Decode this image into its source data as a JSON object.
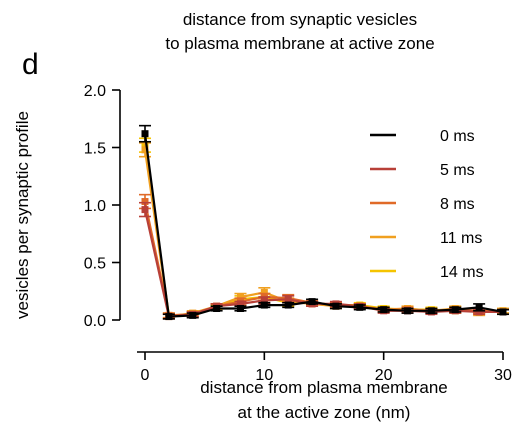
{
  "panel_letter": "d",
  "chart_data": {
    "type": "line",
    "title": [
      "distance from synaptic vesicles",
      "to plasma membrane at active zone"
    ],
    "xlabel": [
      "distance from plasma membrane",
      "at the active zone (nm)"
    ],
    "ylabel": "vesicles per synaptic profile",
    "xlim": [
      0,
      30
    ],
    "ylim": [
      0,
      2.0
    ],
    "x_ticks": [
      "0",
      "10",
      "20",
      "30"
    ],
    "y_ticks": [
      "0.0",
      "0.5",
      "1.0",
      "1.5",
      "2.0"
    ],
    "legend_position": "right",
    "x": [
      0,
      2,
      4,
      6,
      8,
      10,
      12,
      14,
      16,
      18,
      20,
      22,
      24,
      26,
      28,
      30
    ],
    "series": [
      {
        "name": "14 ms",
        "color": "#F5C400",
        "values": [
          1.52,
          0.04,
          0.05,
          0.11,
          0.18,
          0.2,
          0.15,
          0.15,
          0.13,
          0.13,
          0.1,
          0.09,
          0.09,
          0.08,
          0.08,
          0.08
        ],
        "errors": [
          0.06,
          0.02,
          0.02,
          0.02,
          0.03,
          0.03,
          0.03,
          0.02,
          0.02,
          0.02,
          0.02,
          0.02,
          0.02,
          0.02,
          0.02,
          0.02
        ]
      },
      {
        "name": "11 ms",
        "color": "#F0A020",
        "values": [
          1.48,
          0.03,
          0.06,
          0.12,
          0.2,
          0.24,
          0.16,
          0.14,
          0.12,
          0.12,
          0.09,
          0.1,
          0.08,
          0.1,
          0.07,
          0.08
        ],
        "errors": [
          0.06,
          0.02,
          0.02,
          0.02,
          0.03,
          0.04,
          0.03,
          0.02,
          0.02,
          0.02,
          0.02,
          0.02,
          0.02,
          0.02,
          0.03,
          0.02
        ]
      },
      {
        "name": "8 ms",
        "color": "#E06A28",
        "values": [
          1.03,
          0.04,
          0.05,
          0.12,
          0.16,
          0.2,
          0.19,
          0.15,
          0.13,
          0.12,
          0.09,
          0.09,
          0.08,
          0.09,
          0.08,
          0.07
        ],
        "errors": [
          0.06,
          0.02,
          0.02,
          0.02,
          0.03,
          0.03,
          0.03,
          0.02,
          0.02,
          0.02,
          0.02,
          0.02,
          0.02,
          0.02,
          0.02,
          0.02
        ]
      },
      {
        "name": "5 ms",
        "color": "#B84038",
        "values": [
          0.96,
          0.03,
          0.05,
          0.12,
          0.14,
          0.17,
          0.18,
          0.14,
          0.14,
          0.12,
          0.08,
          0.08,
          0.07,
          0.08,
          0.07,
          0.07
        ],
        "errors": [
          0.06,
          0.02,
          0.02,
          0.02,
          0.02,
          0.03,
          0.03,
          0.02,
          0.02,
          0.02,
          0.02,
          0.02,
          0.02,
          0.02,
          0.02,
          0.02
        ]
      },
      {
        "name": "0 ms",
        "color": "#000000",
        "values": [
          1.62,
          0.03,
          0.04,
          0.1,
          0.1,
          0.13,
          0.13,
          0.16,
          0.12,
          0.11,
          0.09,
          0.08,
          0.08,
          0.09,
          0.11,
          0.07
        ],
        "errors": [
          0.07,
          0.02,
          0.02,
          0.02,
          0.02,
          0.02,
          0.02,
          0.02,
          0.02,
          0.02,
          0.02,
          0.02,
          0.02,
          0.02,
          0.03,
          0.02
        ]
      }
    ]
  }
}
